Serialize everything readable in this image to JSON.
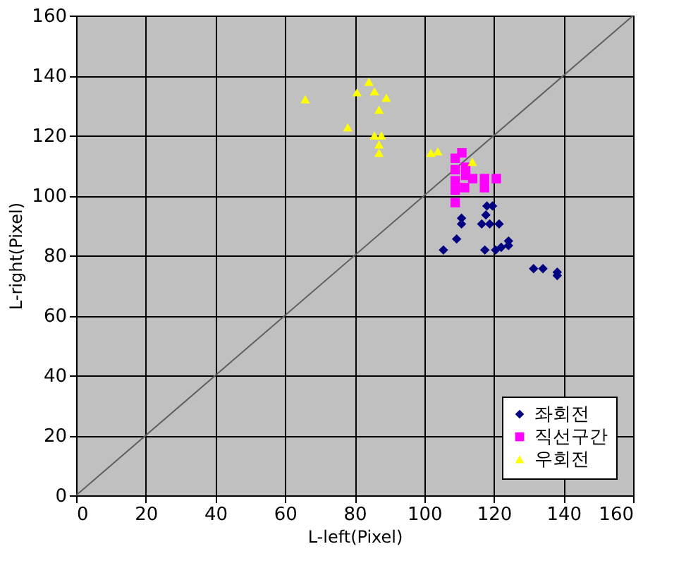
{
  "chart_data": {
    "type": "scatter",
    "xlabel": "L-left(Pixel)",
    "ylabel": "L-right(Pixel)",
    "xlim": [
      0,
      160
    ],
    "ylim": [
      0,
      160
    ],
    "xticks": [
      0,
      20,
      40,
      60,
      80,
      100,
      120,
      140,
      160
    ],
    "yticks": [
      0,
      20,
      40,
      60,
      80,
      100,
      120,
      140,
      160
    ],
    "grid": true,
    "legend": "bottom right",
    "series": [
      {
        "name": "좌회전",
        "color": "#000080",
        "marker": "diamond",
        "x": [
          118,
          119.6,
          117.7,
          110.7,
          110.7,
          116.5,
          118.8,
          121.5,
          109.3,
          105.5,
          117.4,
          120.5,
          122.1,
          124.2,
          124.2,
          131.4,
          134.1,
          138.2,
          138.2
        ],
        "values": [
          96.5,
          96.5,
          93.5,
          92.4,
          90.5,
          90.5,
          90.5,
          90.5,
          85.5,
          81.8,
          81.8,
          81.8,
          82.7,
          84.8,
          83.3,
          75.6,
          75.6,
          74.4,
          73.3
        ]
      },
      {
        "name": "직선구간",
        "color": "#ff00ff",
        "marker": "square",
        "x": [
          110.8,
          108.9,
          108.9,
          111.9,
          111.9,
          113.9,
          108.9,
          117.3,
          117.3,
          120.7,
          108.9,
          111.6,
          108.9
        ],
        "values": [
          114.2,
          112.4,
          108.6,
          109.4,
          106.7,
          105.6,
          104.9,
          105.6,
          102.6,
          105.6,
          101.8,
          102.6,
          97.6
        ]
      },
      {
        "name": "우회전",
        "color": "#ffff00",
        "marker": "triangle",
        "x": [
          65.8,
          80.7,
          84.1,
          85.7,
          89.1,
          87,
          78,
          85.7,
          87.7,
          87,
          87,
          101.9,
          103.9,
          113.8
        ],
        "values": [
          132.1,
          134.4,
          137.9,
          134.7,
          132.6,
          128.6,
          122.7,
          120,
          120,
          117,
          114.2,
          114.2,
          114.7,
          111.2
        ]
      },
      {
        "type": "line",
        "color": "#606060",
        "x": [
          0,
          160
        ],
        "values": [
          0,
          160
        ]
      }
    ]
  }
}
